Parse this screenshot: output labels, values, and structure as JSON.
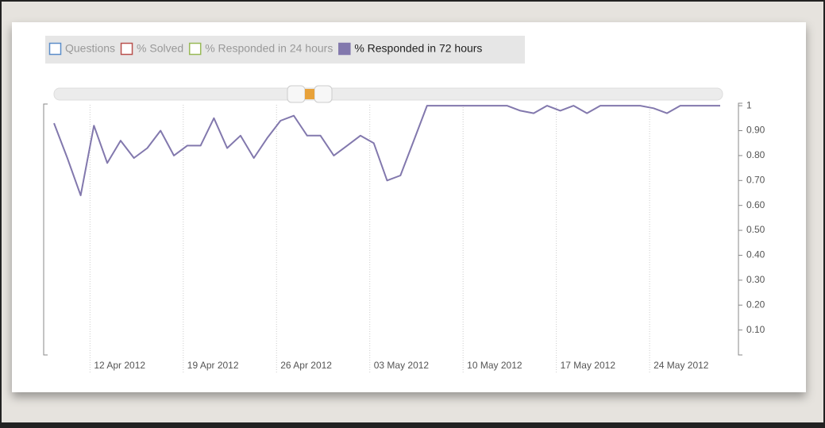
{
  "chart_data": {
    "type": "line",
    "categories": [
      null,
      null,
      null,
      "12 Apr 2012",
      null,
      null,
      null,
      null,
      null,
      null,
      "19 Apr 2012",
      null,
      null,
      null,
      null,
      null,
      null,
      "26 Apr 2012",
      null,
      null,
      null,
      null,
      null,
      null,
      "03 May 2012",
      null,
      null,
      null,
      null,
      null,
      null,
      "10 May 2012",
      null,
      null,
      null,
      null,
      null,
      null,
      "17 May 2012",
      null,
      null,
      null,
      null,
      null,
      null,
      "24 May 2012",
      null,
      null,
      null,
      null,
      null
    ],
    "series": [
      {
        "name": "Questions",
        "color": "#5b8dc9",
        "visible": false
      },
      {
        "name": "% Solved",
        "color": "#b9504d",
        "visible": false
      },
      {
        "name": "% Responded in 24 hours",
        "color": "#98b956",
        "visible": false
      },
      {
        "name": "% Responded in 72 hours",
        "color": "#8278ad",
        "visible": true,
        "values": [
          0.93,
          0.79,
          0.64,
          0.92,
          0.77,
          0.86,
          0.79,
          0.83,
          0.9,
          0.8,
          0.84,
          0.84,
          0.95,
          0.83,
          0.88,
          0.79,
          0.87,
          0.94,
          0.96,
          0.88,
          0.88,
          0.8,
          0.84,
          0.88,
          0.85,
          0.7,
          0.72,
          0.86,
          1,
          1,
          1,
          1,
          1,
          1,
          1,
          0.98,
          0.97,
          1,
          0.98,
          1,
          0.97,
          1,
          1,
          1,
          1,
          0.99,
          0.97,
          1,
          1,
          1,
          1
        ]
      }
    ],
    "ylim": [
      0,
      1.01
    ],
    "yticks": [
      {
        "value": 0.1,
        "label": "0.10"
      },
      {
        "value": 0.2,
        "label": "0.20"
      },
      {
        "value": 0.3,
        "label": "0.30"
      },
      {
        "value": 0.4,
        "label": "0.40"
      },
      {
        "value": 0.5,
        "label": "0.50"
      },
      {
        "value": 0.6,
        "label": "0.60"
      },
      {
        "value": 0.7,
        "label": "0.70"
      },
      {
        "value": 0.8,
        "label": "0.80"
      },
      {
        "value": 0.9,
        "label": "0.90"
      },
      1
    ],
    "grid": true
  }
}
